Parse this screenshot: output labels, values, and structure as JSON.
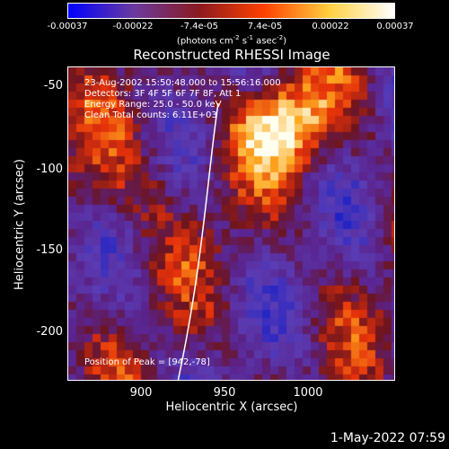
{
  "colorbar": {
    "tick_labels": [
      "-0.00037",
      "-0.00022",
      "-7.4e-05",
      "7.4e-05",
      "0.00022",
      "0.00037"
    ],
    "units": "(photons cm^-2 s^-1 asec^-2)",
    "units_main": "(photons cm",
    "units_mid1": " s",
    "units_mid2": " asec",
    "units_end": ")",
    "units_exp1": "-2",
    "units_exp2": "-1",
    "units_exp3": "-2",
    "colors": [
      "#0000ff",
      "#6a3aa0",
      "#8a1a20",
      "#ff4000",
      "#ffd040",
      "#ffffff"
    ]
  },
  "plot": {
    "title": "Reconstructed RHESSI Image",
    "info_lines": [
      "23-Aug-2002 15:50:48.000 to 15:56:16.000",
      "Detectors: 3F 4F 5F 6F 7F 8F, Att 1",
      "Energy Range: 25.0 - 50.0 keV",
      "Clean     Total counts: 6.11E+03"
    ],
    "peak_label": "Position of Peak = [942,-78]",
    "xlabel": "Heliocentric X (arcsec)",
    "ylabel": "Heliocentric Y (arcsec)",
    "xticks": [
      "900",
      "950",
      "1000"
    ],
    "yticks": [
      "-50",
      "-100",
      "-150",
      "-200"
    ]
  },
  "footer": {
    "timestamp": "1-May-2022 07:59"
  }
}
